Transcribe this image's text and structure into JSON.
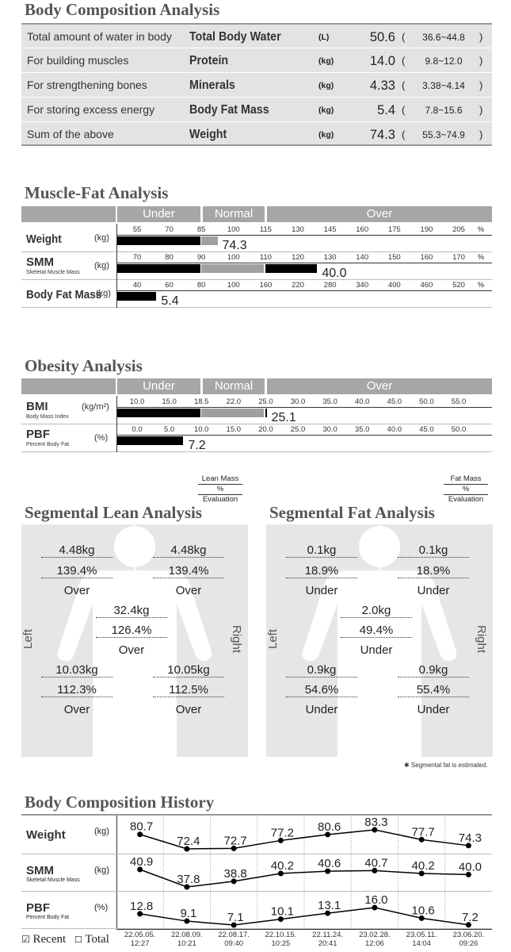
{
  "body_composition": {
    "title": "Body Composition Analysis",
    "rows": [
      {
        "desc": "Total amount of water in body",
        "name": "Total Body Water",
        "unit": "(L)",
        "value": "50.6",
        "range": "36.6~44.8"
      },
      {
        "desc": "For building muscles",
        "name": "Protein",
        "unit": "(kg)",
        "value": "14.0",
        "range": "9.8~12.0"
      },
      {
        "desc": "For strengthening bones",
        "name": "Minerals",
        "unit": "(kg)",
        "value": "4.33",
        "range": "3.38~4.14"
      },
      {
        "desc": "For storing excess energy",
        "name": "Body Fat Mass",
        "unit": "(kg)",
        "value": "5.4",
        "range": "7.8~15.6"
      },
      {
        "desc": "Sum of the above",
        "name": "Weight",
        "unit": "(kg)",
        "value": "74.3",
        "range": "55.3~74.9"
      }
    ]
  },
  "muscle_fat": {
    "title": "Muscle-Fat Analysis",
    "bands": {
      "under": "Under",
      "normal": "Normal",
      "over": "Over"
    },
    "rows": [
      {
        "label": "Weight",
        "unit": "(kg)",
        "ticks": [
          "55",
          "70",
          "85",
          "100",
          "115",
          "130",
          "145",
          "160",
          "175",
          "190",
          "205"
        ],
        "value": "74.3",
        "bar_pct_position": 2.5
      },
      {
        "label": "SMM",
        "sub": "Skeletal Muscle Mass",
        "unit": "(kg)",
        "ticks": [
          "70",
          "80",
          "90",
          "100",
          "110",
          "120",
          "130",
          "140",
          "150",
          "160",
          "170"
        ],
        "value": "40.0",
        "bar_pct_position": 5.6
      },
      {
        "label": "Body Fat Mass",
        "unit": "(kg)",
        "ticks": [
          "40",
          "60",
          "80",
          "100",
          "160",
          "220",
          "280",
          "340",
          "400",
          "460",
          "520"
        ],
        "value": "5.4",
        "bar_pct_position": 0.6
      }
    ],
    "pct_symbol": "%"
  },
  "obesity": {
    "title": "Obesity Analysis",
    "bands": {
      "under": "Under",
      "normal": "Normal",
      "over": "Over"
    },
    "rows": [
      {
        "label": "BMI",
        "sub": "Body Mass Index",
        "unit": "(kg/m²)",
        "ticks": [
          "10.0",
          "15.0",
          "18.5",
          "22.0",
          "25.0",
          "30.0",
          "35.0",
          "40.0",
          "45.0",
          "50.0",
          "55.0"
        ],
        "value": "25.1",
        "bar_pct_position": 4.03
      },
      {
        "label": "PBF",
        "sub": "Percent Body Fat",
        "unit": "(%)",
        "ticks": [
          "0.0",
          "5.0",
          "10.0",
          "15.0",
          "20.0",
          "25.0",
          "30.0",
          "35.0",
          "40.0",
          "45.0",
          "50.0"
        ],
        "value": "7.2",
        "bar_pct_position": 1.44
      }
    ]
  },
  "segmental_lean": {
    "title": "Segmental Lean Analysis",
    "legend": [
      "Lean Mass",
      "%",
      "Evaluation"
    ],
    "left": "Left",
    "right": "Right",
    "left_arm": {
      "mass": "4.48kg",
      "pct": "139.4%",
      "eval": "Over"
    },
    "right_arm": {
      "mass": "4.48kg",
      "pct": "139.4%",
      "eval": "Over"
    },
    "trunk": {
      "mass": "32.4kg",
      "pct": "126.4%",
      "eval": "Over"
    },
    "left_leg": {
      "mass": "10.03kg",
      "pct": "112.3%",
      "eval": "Over"
    },
    "right_leg": {
      "mass": "10.05kg",
      "pct": "112.5%",
      "eval": "Over"
    }
  },
  "segmental_fat": {
    "title": "Segmental Fat Analysis",
    "legend": [
      "Fat Mass",
      "%",
      "Evaluation"
    ],
    "left": "Left",
    "right": "Right",
    "left_arm": {
      "mass": "0.1kg",
      "pct": "18.9%",
      "eval": "Under"
    },
    "right_arm": {
      "mass": "0.1kg",
      "pct": "18.9%",
      "eval": "Under"
    },
    "trunk": {
      "mass": "2.0kg",
      "pct": "49.4%",
      "eval": "Under"
    },
    "left_leg": {
      "mass": "0.9kg",
      "pct": "54.6%",
      "eval": "Under"
    },
    "right_leg": {
      "mass": "0.9kg",
      "pct": "55.4%",
      "eval": "Under"
    },
    "note": "✱ Segmental fat is estimated."
  },
  "history": {
    "title": "Body Composition History",
    "recent_label": "Recent",
    "total_label": "Total",
    "rows": [
      {
        "label": "Weight",
        "unit": "(kg)",
        "values": [
          "80.7",
          "72.4",
          "72.7",
          "77.2",
          "80.6",
          "83.3",
          "77.7",
          "74.3"
        ]
      },
      {
        "label": "SMM",
        "sub": "Skeletal Muscle Mass",
        "unit": "(kg)",
        "values": [
          "40.9",
          "37.8",
          "38.8",
          "40.2",
          "40.6",
          "40.7",
          "40.2",
          "40.0"
        ]
      },
      {
        "label": "PBF",
        "sub": "Percent Body Fat",
        "unit": "(%)",
        "values": [
          "12.8",
          "9.1",
          "7.1",
          "10.1",
          "13.1",
          "16.0",
          "10.6",
          "7.2"
        ]
      }
    ],
    "dates": [
      [
        "22.05.05.",
        "12:27"
      ],
      [
        "22.08.09.",
        "10:21"
      ],
      [
        "22.08.17.",
        "09:40"
      ],
      [
        "22.10.15.",
        "10:25"
      ],
      [
        "22.11.24.",
        "20:41"
      ],
      [
        "23.02.28.",
        "12:06"
      ],
      [
        "23.05.11.",
        "14:04"
      ],
      [
        "23.06.20.",
        "09:26"
      ]
    ]
  }
}
